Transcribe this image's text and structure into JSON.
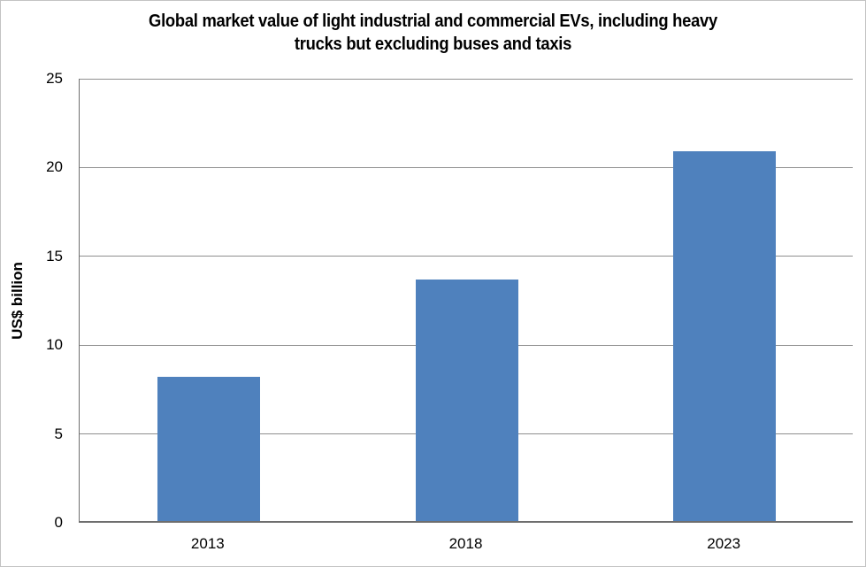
{
  "window": {
    "background": "#ffffff",
    "border_color": "#c3c3c3"
  },
  "chart_data": {
    "type": "bar",
    "title": "Global market value of light industrial and commercial EVs, including heavy trucks but excluding buses and taxis",
    "title_lines": [
      "Global market value of light industrial and commercial EVs, including heavy",
      "trucks but excluding buses and taxis"
    ],
    "categories": [
      "2013",
      "2018",
      "2023"
    ],
    "values": [
      8.1,
      13.6,
      20.8
    ],
    "xlabel": "",
    "ylabel": "US$ billion",
    "ylim": [
      0,
      25
    ],
    "y_ticks": [
      0,
      5,
      10,
      15,
      20,
      25
    ],
    "grid": true,
    "legend": "none",
    "bar_color": "#4f81bd",
    "gridline_color": "#8f8f8f",
    "axis_color": "#6e6e6e"
  }
}
